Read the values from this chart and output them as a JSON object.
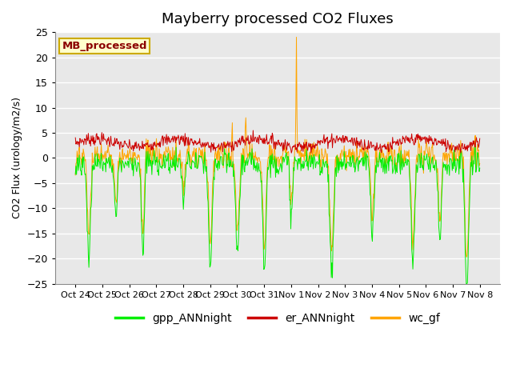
{
  "title": "Mayberry processed CO2 Fluxes",
  "ylabel": "CO2 Flux (urology/m2/s)",
  "ylim": [
    -25,
    25
  ],
  "yticks": [
    -25,
    -20,
    -15,
    -10,
    -5,
    0,
    5,
    10,
    15,
    20,
    25
  ],
  "xtick_labels": [
    "Oct 24",
    "Oct 25",
    "Oct 26",
    "Oct 27",
    "Oct 28",
    "Oct 29",
    "Oct 30",
    "Oct 31",
    "Nov 1",
    "Nov 2",
    "Nov 3",
    "Nov 4",
    "Nov 5",
    "Nov 6",
    "Nov 7",
    "Nov 8"
  ],
  "legend_label": "MB_processed",
  "series_labels": [
    "gpp_ANNnight",
    "er_ANNnight",
    "wc_gf"
  ],
  "colors": [
    "#00ee00",
    "#cc0000",
    "#ffa500"
  ],
  "background_color": "#e8e8e8",
  "title_fontsize": 13,
  "axis_fontsize": 9,
  "legend_fontsize": 10,
  "n_days": 15,
  "pts_per_day": 48,
  "seed": 7
}
